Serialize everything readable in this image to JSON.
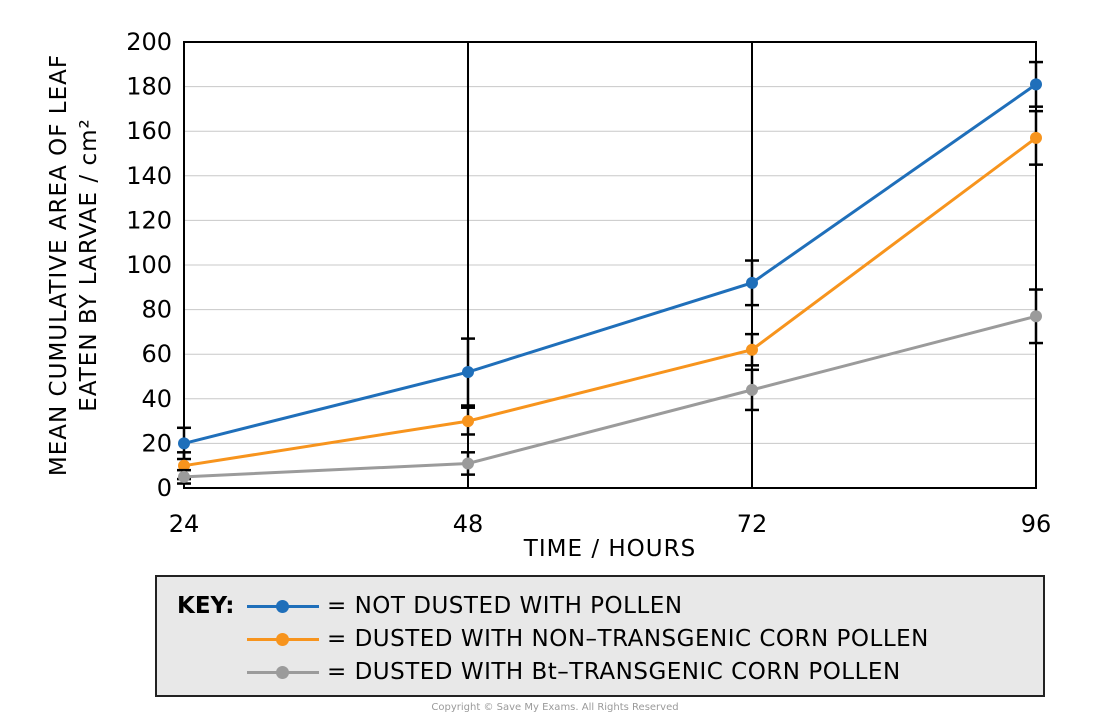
{
  "chart_data": {
    "type": "line",
    "xlabel": "TIME / HOURS",
    "ylabel_lines": [
      "MEAN CUMULATIVE AREA OF LEAF",
      "EATEN BY LARVAE / cm²"
    ],
    "x": [
      24,
      48,
      72,
      96
    ],
    "ylim": [
      0,
      200
    ],
    "yticks": [
      0,
      20,
      40,
      60,
      80,
      100,
      120,
      140,
      160,
      180,
      200
    ],
    "grid": true,
    "series": [
      {
        "name": "NOT DUSTED WITH POLLEN",
        "color": "#1f6fba",
        "values": [
          20,
          52,
          92,
          181
        ],
        "errors": [
          7,
          15,
          10,
          10
        ]
      },
      {
        "name": "DUSTED WITH NON-TRANSGENIC CORN POLLEN",
        "color": "#f7941d",
        "values": [
          10,
          30,
          62,
          157
        ],
        "errors": [
          6,
          6,
          7,
          12
        ]
      },
      {
        "name": "DUSTED WITH Bt-TRANSGENIC CORN POLLEN",
        "color": "#9b9b9b",
        "values": [
          5,
          11,
          44,
          77
        ],
        "errors": [
          3,
          5,
          9,
          12
        ]
      }
    ]
  },
  "key": {
    "title": "KEY:",
    "labels": [
      "= NOT DUSTED WITH  POLLEN",
      "= DUSTED  WITH  NON–TRANSGENIC  CORN  POLLEN",
      "= DUSTED  WITH  Bt–TRANSGENIC  CORN  POLLEN"
    ]
  },
  "copyright": "Copyright © Save My Exams. All Rights Reserved"
}
